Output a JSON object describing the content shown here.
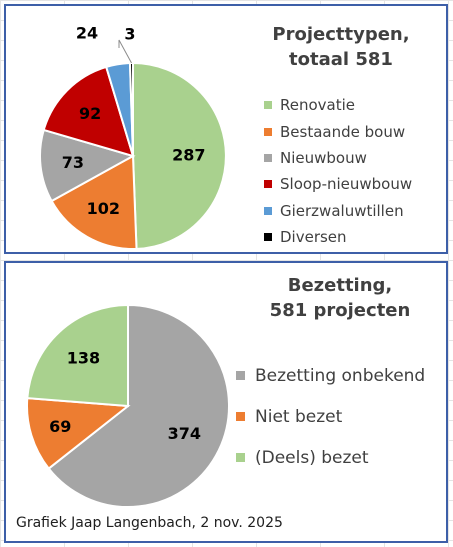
{
  "charts": [
    {
      "type": "pie",
      "title_line1": "Projecttypen,",
      "title_line2": "totaal 581",
      "legend_position": "right",
      "categories": [
        "Renovatie",
        "Bestaande bouw",
        "Nieuwbouw",
        "Sloop-nieuwbouw",
        "Gierzwaluwtillen",
        "Diversen"
      ],
      "values": [
        287,
        102,
        73,
        92,
        24,
        3
      ],
      "colors": [
        "#a9d18e",
        "#ed7d31",
        "#a5a5a5",
        "#c00000",
        "#5b9bd5",
        "#000000"
      ]
    },
    {
      "type": "pie",
      "title_line1": "Bezetting,",
      "title_line2": "581 projecten",
      "legend_position": "right",
      "categories": [
        "Bezetting onbekend",
        "Niet bezet",
        "(Deels) bezet"
      ],
      "values": [
        374,
        69,
        138
      ],
      "colors": [
        "#a5a5a5",
        "#ed7d31",
        "#a9d18e"
      ]
    }
  ],
  "credit": "Grafiek Jaap Langenbach, 2 nov. 2025"
}
